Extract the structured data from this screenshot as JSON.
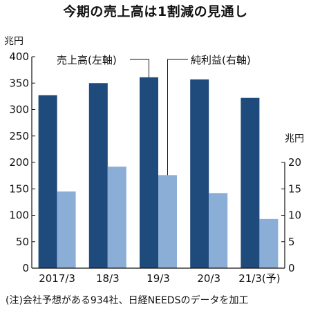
{
  "chart_data": {
    "type": "bar",
    "title": "今期の売上高は1割減の見通し",
    "categories": [
      "2017/3",
      "18/3",
      "19/3",
      "20/3",
      "21/3(予)"
    ],
    "series": [
      {
        "name": "売上高(左軸)",
        "axis": "left",
        "color": "#1f4a7c",
        "values": [
          327,
          350,
          361,
          357,
          322
        ]
      },
      {
        "name": "純利益(右軸)",
        "axis": "right",
        "color": "#8aaed6",
        "values": [
          14.5,
          19.2,
          17.6,
          14.2,
          9.3
        ]
      }
    ],
    "left_axis": {
      "unit": "兆円",
      "ylim": [
        0,
        400
      ],
      "ticks": [
        0,
        50,
        100,
        150,
        200,
        250,
        300,
        350,
        400
      ]
    },
    "right_axis": {
      "unit": "兆円",
      "ylim": [
        0,
        40
      ],
      "ticks": [
        0,
        5,
        10,
        15,
        20
      ]
    },
    "grid": false
  },
  "footnote": "(注)会社予想がある934社、日経NEEDSのデータを加工"
}
